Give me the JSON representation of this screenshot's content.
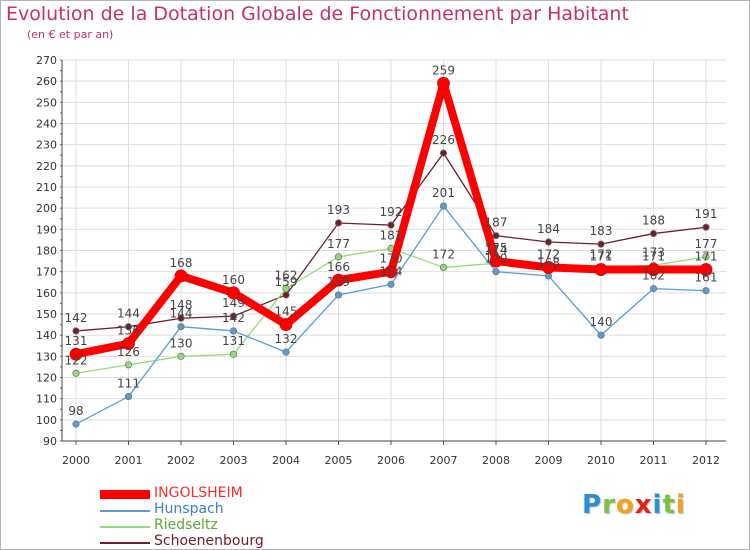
{
  "title": "Evolution de la Dotation Globale de Fonctionnement par Habitant",
  "subtitle": "(en € et par an)",
  "logo": {
    "text": "Proxiti",
    "letters": [
      {
        "ch": "P",
        "color": "#2a8fd8"
      },
      {
        "ch": "r",
        "color": "#7cc242"
      },
      {
        "ch": "o",
        "color": "#f4a11d"
      },
      {
        "ch": "x",
        "color": "#e2231a"
      },
      {
        "ch": "i",
        "color": "#2a8fd8"
      },
      {
        "ch": "t",
        "color": "#7cc242"
      },
      {
        "ch": "i",
        "color": "#f4a11d"
      }
    ]
  },
  "chart_data": {
    "type": "line",
    "title": "Evolution de la Dotation Globale de Fonctionnement par Habitant",
    "ylabel": "(en € et par an)",
    "xlabel": "",
    "x": [
      "2000",
      "2001",
      "2002",
      "2003",
      "2004",
      "2005",
      "2006",
      "2007",
      "2008",
      "2009",
      "2010",
      "2011",
      "2012"
    ],
    "ylim": [
      90,
      270
    ],
    "yticks": [
      90,
      100,
      110,
      120,
      130,
      140,
      150,
      160,
      170,
      180,
      190,
      200,
      210,
      220,
      230,
      240,
      250,
      260,
      270
    ],
    "grid": true,
    "legend_position": "bottom-left",
    "series": [
      {
        "name": "Schoenenbourg",
        "color": "#6e1e28",
        "values": [
          142,
          144,
          148,
          149,
          159,
          193,
          192,
          226,
          187,
          184,
          183,
          188,
          191
        ]
      },
      {
        "name": "Riedseltz",
        "color": "#94dc78",
        "values": [
          122,
          126,
          130,
          131,
          162,
          177,
          181,
          172,
          174,
          172,
          172,
          173,
          177
        ]
      },
      {
        "name": "Hunspach",
        "color": "#5a9bd5",
        "values": [
          98,
          111,
          144,
          142,
          132,
          159,
          164,
          201,
          170,
          168,
          140,
          162,
          161
        ]
      },
      {
        "name": "INGOLSHEIM",
        "color": "#ff0000",
        "values": [
          131,
          136,
          168,
          160,
          145,
          166,
          170,
          259,
          175,
          172,
          171,
          171,
          171
        ]
      }
    ]
  }
}
